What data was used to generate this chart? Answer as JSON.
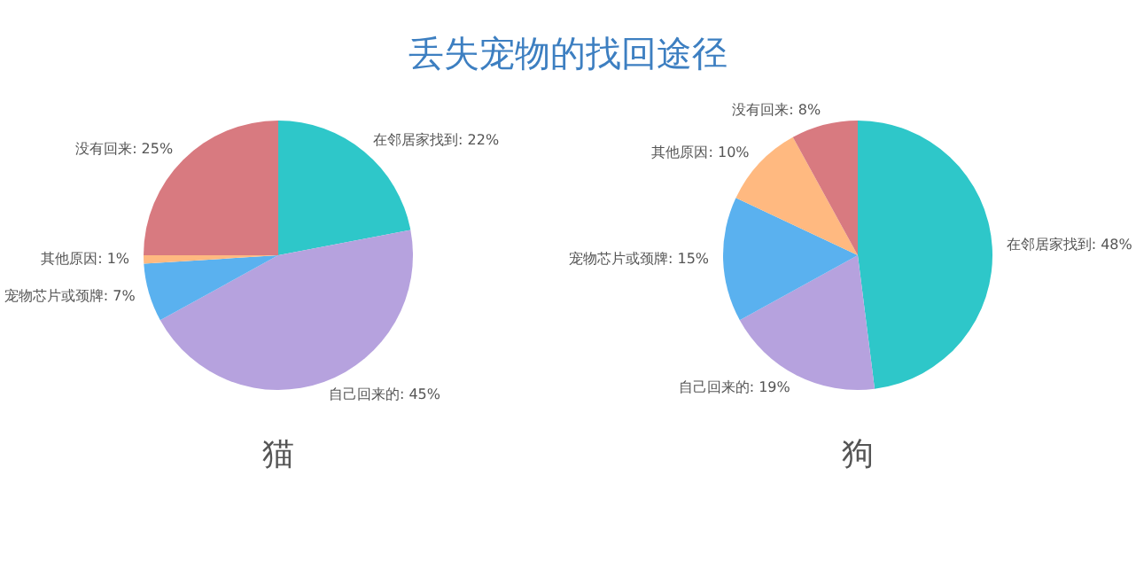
{
  "chart_data": [
    {
      "type": "pie",
      "title": "丢失宠物的找回途径",
      "xlabel": "猫",
      "categories": [
        "在邻居家找到",
        "自己回来的",
        "宠物芯片或颈牌",
        "其他原因",
        "没有回来"
      ],
      "values": [
        22,
        45,
        7,
        1,
        25
      ],
      "value_labels": [
        "22%",
        "45%",
        "7%",
        "1%",
        "25%"
      ],
      "colors": [
        "#2ec7c9",
        "#b6a2de",
        "#5ab1ef",
        "#ffb980",
        "#d87a80"
      ]
    },
    {
      "type": "pie",
      "xlabel": "狗",
      "categories": [
        "在邻居家找到",
        "自己回来的",
        "宠物芯片或颈牌",
        "其他原因",
        "没有回来"
      ],
      "values": [
        48,
        19,
        15,
        10,
        8
      ],
      "value_labels": [
        "48%",
        "19%",
        "15%",
        "10%",
        "8%"
      ],
      "colors": [
        "#2ec7c9",
        "#b6a2de",
        "#5ab1ef",
        "#ffb980",
        "#d87a80"
      ]
    }
  ]
}
